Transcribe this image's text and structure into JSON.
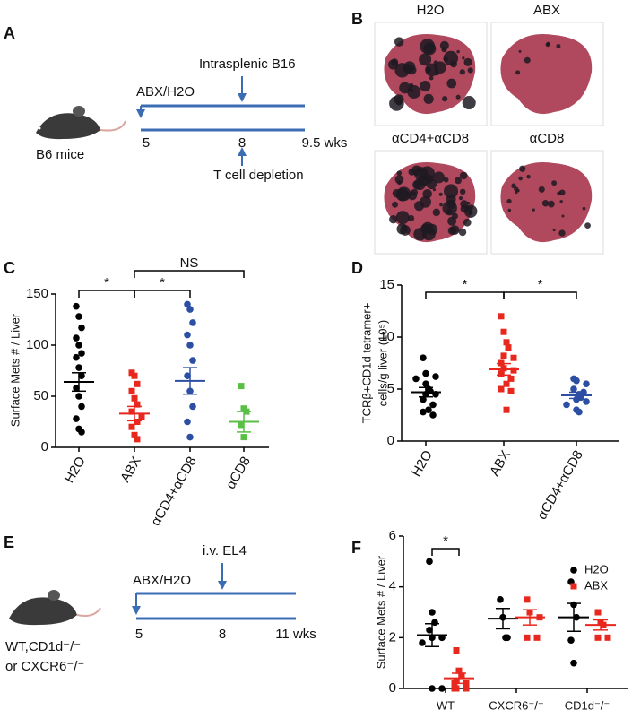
{
  "chart_data": [
    {
      "type": "dot",
      "panel": "C",
      "ylabel": "Surface Mets # / Liver",
      "ylim": [
        0,
        150
      ],
      "yticks": [
        0,
        50,
        100,
        150
      ],
      "groups": [
        {
          "label": "H2O",
          "color": "#000000",
          "marker": "circle",
          "values": [
            138,
            128,
            117,
            107,
            100,
            92,
            88,
            78,
            70,
            58,
            50,
            40,
            28,
            18,
            15
          ],
          "mean": 64,
          "sem": 9
        },
        {
          "label": "ABX",
          "color": "#e8281e",
          "marker": "square",
          "values": [
            73,
            70,
            62,
            55,
            48,
            42,
            35,
            30,
            25,
            20,
            12,
            8
          ],
          "mean": 33,
          "sem": 7
        },
        {
          "label": "αCD4+αCD8",
          "color": "#2c4fa3",
          "marker": "circle",
          "values": [
            140,
            135,
            122,
            110,
            100,
            85,
            70,
            55,
            40,
            25,
            10
          ],
          "mean": 65,
          "sem": 13
        },
        {
          "label": "αCD8",
          "color": "#5bbf45",
          "marker": "square",
          "values": [
            60,
            38,
            35,
            22,
            10
          ],
          "mean": 25,
          "sem": 10
        }
      ],
      "annotations": [
        "*",
        "*",
        "NS"
      ]
    },
    {
      "type": "dot",
      "panel": "D",
      "ylabel": [
        "TCRβ+CD1d tetramer+",
        "cells/g liver (10⁵)"
      ],
      "ylim": [
        0,
        15
      ],
      "yticks": [
        0,
        5,
        10,
        15
      ],
      "groups": [
        {
          "label": "H2O",
          "color": "#000000",
          "marker": "circle",
          "values": [
            8,
            6.5,
            6.2,
            6,
            5.5,
            5,
            4.8,
            4.5,
            4.5,
            4,
            3.5,
            3,
            2.8,
            2.5
          ],
          "mean": 4.7,
          "sem": 0.45
        },
        {
          "label": "ABX",
          "color": "#e8281e",
          "marker": "square",
          "values": [
            12,
            10.5,
            9.5,
            9,
            8.2,
            8,
            7.5,
            7,
            6.8,
            6.5,
            6,
            5.5,
            5,
            4.8,
            3
          ],
          "mean": 6.9,
          "sem": 0.55
        },
        {
          "label": "αCD4+αCD8",
          "color": "#2c4fa3",
          "marker": "circle",
          "values": [
            6,
            5.8,
            5.5,
            5,
            4.7,
            4.5,
            4.2,
            4,
            3.8,
            3.5,
            3,
            2.8
          ],
          "mean": 4.4,
          "sem": 0.3
        }
      ],
      "annotations": [
        "*",
        "*"
      ]
    },
    {
      "type": "dot",
      "panel": "F",
      "ylabel": "Surface Mets # / Liver",
      "ylim": [
        0,
        6
      ],
      "yticks": [
        0,
        2,
        4,
        6
      ],
      "categories": [
        "WT",
        "CXCR6⁻/⁻",
        "CD1d⁻/⁻"
      ],
      "legend": "upper right",
      "series": [
        {
          "name": "H2O",
          "color": "#000000",
          "marker": "circle",
          "values": [
            [
              5,
              3,
              2.6,
              2.3,
              2,
              2,
              1.8,
              0,
              0
            ],
            [
              3.5,
              2.8,
              2,
              2
            ],
            [
              4.2,
              3.3,
              2.8,
              1.9,
              1
            ]
          ],
          "mean": [
            2.1,
            2.75,
            2.8
          ],
          "sem": [
            0.45,
            0.4,
            0.55
          ]
        },
        {
          "name": "ABX",
          "color": "#e8281e",
          "marker": "square",
          "values": [
            [
              1.5,
              0.7,
              0.5,
              0.3,
              0.2,
              0.2,
              0,
              0,
              0
            ],
            [
              3.5,
              3,
              2.8,
              2,
              2
            ],
            [
              3,
              2.6,
              2.5,
              2,
              2
            ]
          ],
          "mean": [
            0.4,
            2.8,
            2.5
          ],
          "sem": [
            0.2,
            0.3,
            0.2
          ]
        }
      ],
      "annotations": [
        "*"
      ]
    }
  ],
  "diagrams": {
    "A": {
      "letter": "A",
      "mouse": "B6 mice",
      "treatment": "ABX/H2O",
      "event": "Intrasplenic B16",
      "depletion": "T cell depletion",
      "timepoints": [
        "5",
        "8",
        "9.5 wks"
      ]
    },
    "B": {
      "letter": "B",
      "images": [
        "H2O",
        "ABX",
        "αCD4+αCD8",
        "αCD8"
      ]
    },
    "E": {
      "letter": "E",
      "mouse": [
        "WT,CD1d⁻/⁻",
        "or CXCR6⁻/⁻"
      ],
      "treatment": "ABX/H2O",
      "event": "i.v. EL4",
      "timepoints": [
        "5",
        "8",
        "11 wks"
      ]
    }
  }
}
